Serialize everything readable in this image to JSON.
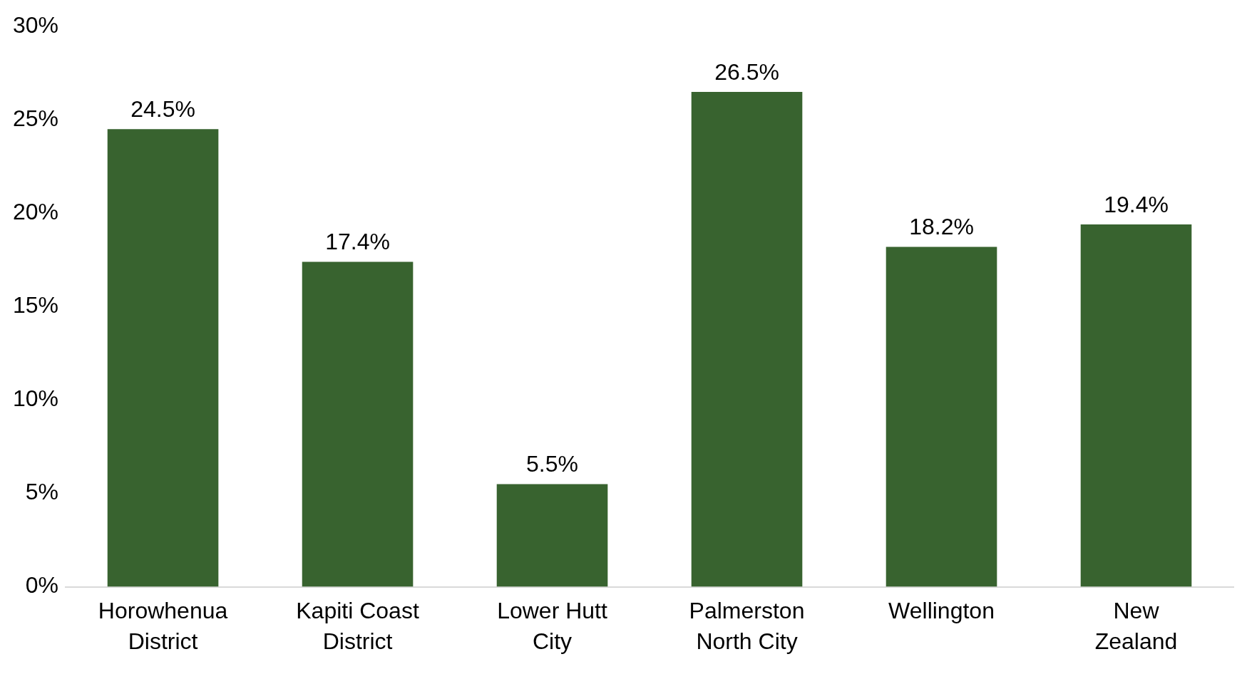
{
  "chart_data": {
    "type": "bar",
    "categories": [
      "Horowhenua District",
      "Kapiti Coast District",
      "Lower Hutt City",
      "Palmerston North City",
      "Wellington",
      "New Zealand"
    ],
    "values": [
      24.5,
      17.4,
      5.5,
      26.5,
      18.2,
      19.4
    ],
    "value_labels": [
      "24.5%",
      "17.4%",
      "5.5%",
      "26.5%",
      "18.2%",
      "19.4%"
    ],
    "color": "#38632f",
    "ylim": [
      0,
      30
    ],
    "yticks": [
      {
        "value": 0,
        "label": "0%"
      },
      {
        "value": 5,
        "label": "5%"
      },
      {
        "value": 10,
        "label": "10%"
      },
      {
        "value": 15,
        "label": "15%"
      },
      {
        "value": 20,
        "label": "20%"
      },
      {
        "value": 25,
        "label": "25%"
      },
      {
        "value": 30,
        "label": "30%"
      }
    ],
    "grid": false,
    "legend": false
  }
}
